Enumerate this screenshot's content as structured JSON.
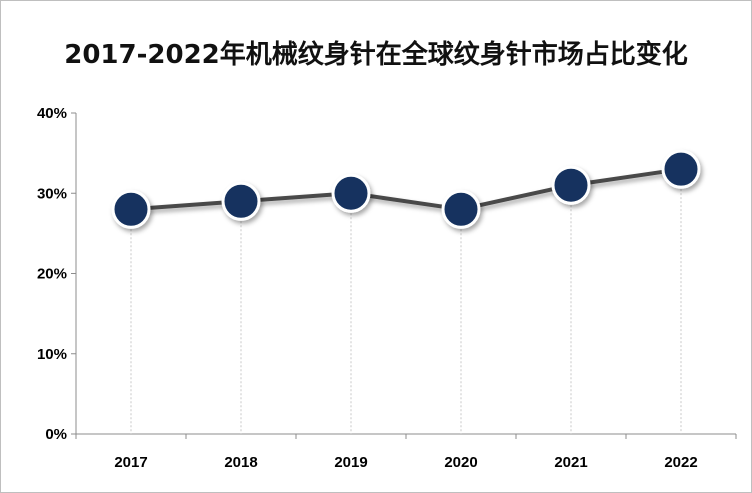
{
  "chart_data": {
    "type": "line",
    "title": "2017-2022年机械纹身针在全球纹身针市场占比变化",
    "xlabel": "",
    "ylabel": "",
    "categories": [
      "2017",
      "2018",
      "2019",
      "2020",
      "2021",
      "2022"
    ],
    "series": [
      {
        "values": [
          28,
          29,
          30,
          28,
          31,
          33
        ]
      }
    ],
    "ylim": [
      0,
      40
    ],
    "yticks": [
      "0%",
      "10%",
      "20%",
      "30%",
      "40%"
    ],
    "grid": false,
    "legend": "none",
    "colors": {
      "line": "#4a4a4a",
      "marker_fill": "#12325e",
      "marker_border": "#ffffff",
      "drop_line": "#c8c8c8",
      "axis": "#8c8c8c"
    }
  }
}
